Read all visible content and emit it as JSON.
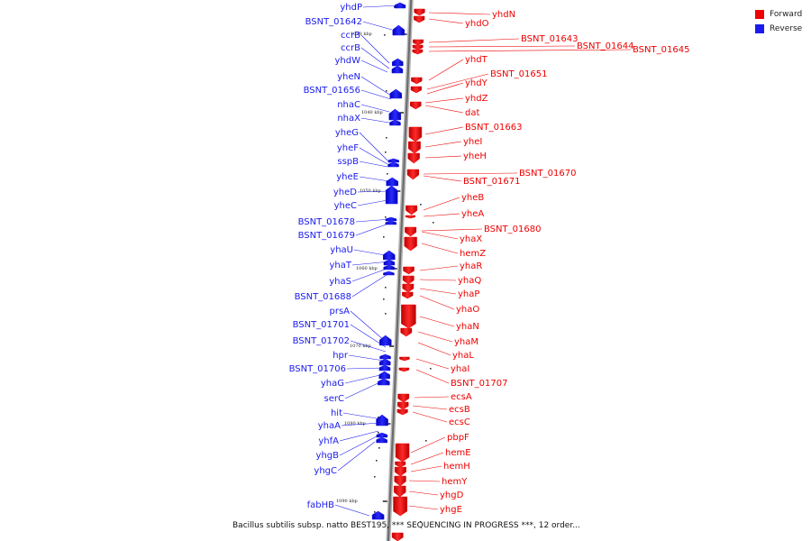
{
  "legend": {
    "forward": {
      "label": "Forward",
      "color": "#ee0000"
    },
    "reverse": {
      "label": "Reverse",
      "color": "#1a1aee"
    }
  },
  "caption": "Bacillus subtilis subsp. natto BEST195, *** SEQUENCING IN PROGRESS ***, 12 order...",
  "kbp_marks": [
    "1030 kbp",
    "1040 kbp",
    "1050 kbp",
    "1060 kbp",
    "1070 kbp",
    "1080 kbp",
    "1090 kbp"
  ],
  "reverse_genes": [
    "yhdP",
    "BSNT_01642",
    "ccrB",
    "ccrB",
    "yhdW",
    "yheN",
    "BSNT_01656",
    "nhaC",
    "nhaX",
    "yheG",
    "yheF",
    "sspB",
    "yheE",
    "yheD",
    "yheC",
    "BSNT_01678",
    "BSNT_01679",
    "yhaU",
    "yhaT",
    "yhaS",
    "BSNT_01688",
    "prsA",
    "BSNT_01701",
    "BSNT_01702",
    "hpr",
    "BSNT_01706",
    "yhaG",
    "serC",
    "hit",
    "yhaA",
    "yhfA",
    "yhgB",
    "yhgC",
    "fabHB"
  ],
  "forward_genes": [
    "yhdN",
    "yhdO",
    "BSNT_01643",
    "BSNT_01644",
    "BSNT_01645",
    "yhdT",
    "BSNT_01651",
    "yhdY",
    "yhdZ",
    "dat",
    "BSNT_01663",
    "yheI",
    "yheH",
    "BSNT_01670",
    "BSNT_01671",
    "yheB",
    "yheA",
    "BSNT_01680",
    "yhaX",
    "hemZ",
    "yhaR",
    "yhaQ",
    "yhaP",
    "yhaO",
    "yhaN",
    "yhaM",
    "yhaL",
    "yhaI",
    "BSNT_01707",
    "ecsA",
    "ecsB",
    "ecsC",
    "pbpF",
    "hemE",
    "hemH",
    "hemY",
    "yhgD",
    "yhgE"
  ]
}
